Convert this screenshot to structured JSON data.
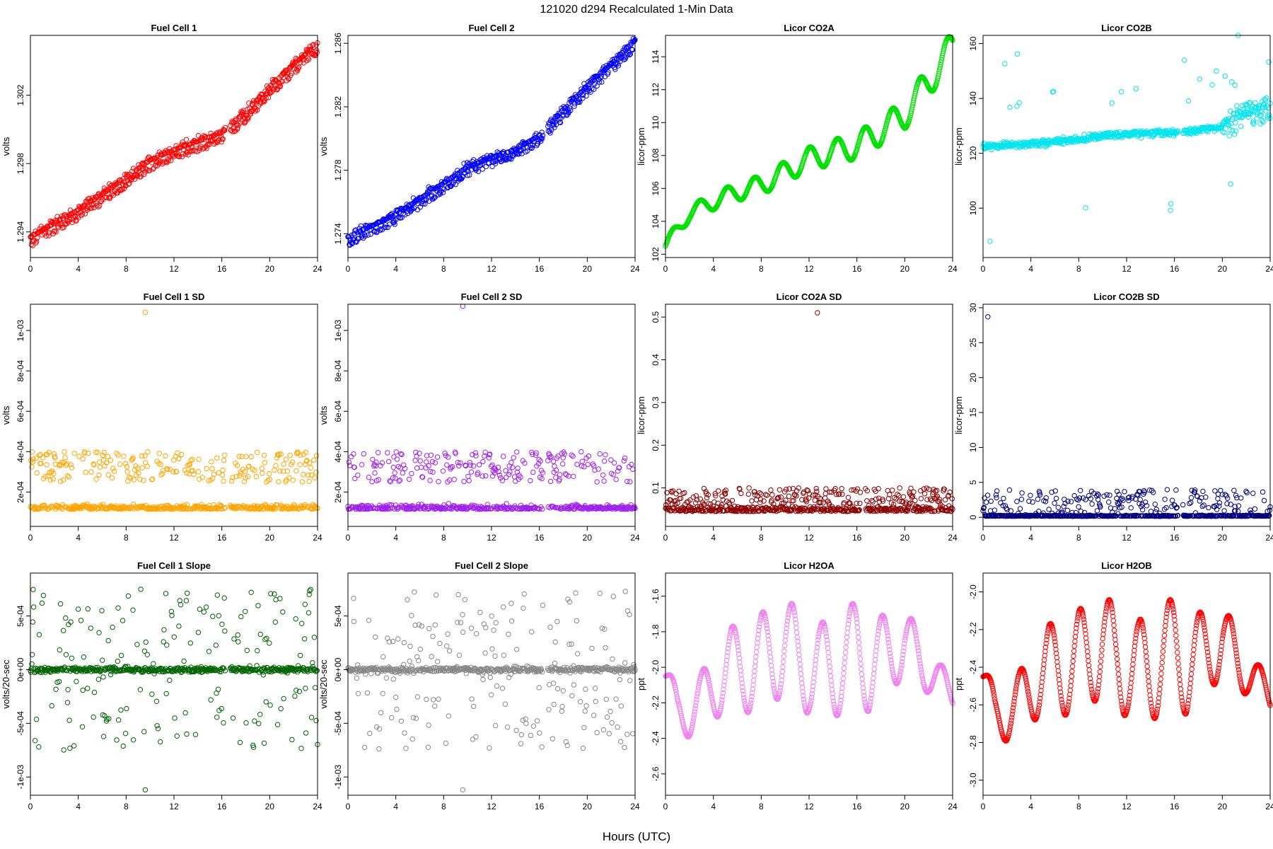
{
  "figure": {
    "title": "121020   d294   Recalculated 1-Min Data",
    "xlabel": "Hours (UTC)"
  },
  "chart_data": [
    {
      "type": "scatter",
      "title": "Fuel Cell 1",
      "ylabel": "volts",
      "color": "#ff0000",
      "xlim": [
        0,
        24
      ],
      "ylim": [
        1.2925,
        1.3055
      ],
      "xticks": [
        0,
        4,
        8,
        12,
        16,
        20,
        24
      ],
      "yticks": [
        1.294,
        1.298,
        1.302
      ],
      "ytick_labels": [
        "1.294",
        "1.298",
        "1.302"
      ],
      "shape": "trend",
      "x": [
        0,
        2,
        4,
        6,
        8,
        10,
        12,
        14,
        16,
        18,
        20,
        22,
        24
      ],
      "y": [
        1.2937,
        1.2945,
        1.2953,
        1.2962,
        1.2972,
        1.2982,
        1.2988,
        1.2993,
        1.2998,
        1.301,
        1.3025,
        1.3038,
        1.305
      ],
      "noise": 0.00035,
      "band": -0.0006
    },
    {
      "type": "scatter",
      "title": "Fuel Cell 2",
      "ylabel": "volts",
      "color": "#0000ff",
      "xlim": [
        0,
        24
      ],
      "ylim": [
        1.2725,
        1.2865
      ],
      "xticks": [
        0,
        4,
        8,
        12,
        16,
        20,
        24
      ],
      "yticks": [
        1.274,
        1.278,
        1.282,
        1.286
      ],
      "ytick_labels": [
        "1.274",
        "1.278",
        "1.282",
        "1.286"
      ],
      "shape": "trend",
      "x": [
        0,
        2,
        4,
        6,
        8,
        10,
        12,
        14,
        16,
        18,
        20,
        22,
        24
      ],
      "y": [
        1.2738,
        1.2745,
        1.2752,
        1.2762,
        1.2772,
        1.2782,
        1.2788,
        1.2793,
        1.2802,
        1.2818,
        1.2833,
        1.2847,
        1.2862
      ],
      "noise": 0.0004,
      "band": -0.0006
    },
    {
      "type": "scatter",
      "title": "Licor CO2A",
      "ylabel": "licor-ppm",
      "color": "#00e000",
      "xlim": [
        0,
        24
      ],
      "ylim": [
        101.8,
        115.3
      ],
      "xticks": [
        0,
        4,
        8,
        12,
        16,
        20,
        24
      ],
      "yticks": [
        102,
        104,
        106,
        108,
        110,
        112,
        114
      ],
      "ytick_labels": [
        "102",
        "104",
        "106",
        "108",
        "110",
        "112",
        "114"
      ],
      "shape": "osc",
      "x": [
        0,
        2,
        4,
        6,
        8,
        10,
        12,
        14,
        16,
        18,
        20,
        22,
        24
      ],
      "y": [
        102.5,
        104.5,
        105.2,
        105.8,
        106.2,
        107,
        107.8,
        108.2,
        108.6,
        109.5,
        110.5,
        112.5,
        114.6
      ],
      "amp": 1.0,
      "period": 2.3
    },
    {
      "type": "scatter",
      "title": "Licor CO2B",
      "ylabel": "licor-ppm",
      "color": "#00e5ee",
      "xlim": [
        0,
        24
      ],
      "ylim": [
        82,
        163
      ],
      "xticks": [
        0,
        4,
        8,
        12,
        16,
        20,
        24
      ],
      "yticks": [
        100,
        120,
        140,
        160
      ],
      "ytick_labels": [
        "100",
        "120",
        "140",
        "160"
      ],
      "shape": "spiky",
      "x": [
        0,
        4,
        8,
        10,
        12,
        16,
        20,
        22,
        24
      ],
      "y": [
        122.5,
        123.5,
        125,
        126.5,
        127,
        127.5,
        129.5,
        135,
        137
      ],
      "noise": 1.2
    },
    {
      "type": "scatter",
      "title": "Fuel Cell 1 SD",
      "ylabel": "volts",
      "color": "#ffa500",
      "xlim": [
        0,
        24
      ],
      "ylim": [
        3e-05,
        0.00113
      ],
      "xticks": [
        0,
        4,
        8,
        12,
        16,
        20,
        24
      ],
      "yticks": [
        0.0002,
        0.0004,
        0.0006,
        0.0008,
        0.001
      ],
      "ytick_labels": [
        "2e-04",
        "4e-04",
        "6e-04",
        "8e-04",
        "1e-03"
      ],
      "shape": "sd",
      "base": 0.000115,
      "noise": 2e-05,
      "outlier_lo": 0.00025,
      "outlier_hi": 0.0004,
      "spike_x": 9.6,
      "spike_y": 0.00109
    },
    {
      "type": "scatter",
      "title": "Fuel Cell 2 SD",
      "ylabel": "volts",
      "color": "#a020f0",
      "xlim": [
        0,
        24
      ],
      "ylim": [
        3e-05,
        0.00113
      ],
      "xticks": [
        0,
        4,
        8,
        12,
        16,
        20,
        24
      ],
      "yticks": [
        0.0002,
        0.0004,
        0.0006,
        0.0008,
        0.001
      ],
      "ytick_labels": [
        "2e-04",
        "4e-04",
        "6e-04",
        "8e-04",
        "1e-03"
      ],
      "shape": "sd",
      "base": 0.000115,
      "noise": 2e-05,
      "outlier_lo": 0.00025,
      "outlier_hi": 0.0004,
      "spike_x": 9.6,
      "spike_y": 0.00112
    },
    {
      "type": "scatter",
      "title": "Licor CO2A SD",
      "ylabel": "licor-ppm",
      "color": "#8b0000",
      "xlim": [
        0,
        24
      ],
      "ylim": [
        0.01,
        0.53
      ],
      "xticks": [
        0,
        4,
        8,
        12,
        16,
        20,
        24
      ],
      "yticks": [
        0.1,
        0.2,
        0.3,
        0.4,
        0.5
      ],
      "ytick_labels": [
        "0.1",
        "0.2",
        "0.3",
        "0.4",
        "0.5"
      ],
      "shape": "sd",
      "base": 0.045,
      "noise": 0.012,
      "outlier_lo": 0.06,
      "outlier_hi": 0.1,
      "spike_x": 12.7,
      "spike_y": 0.51
    },
    {
      "type": "scatter",
      "title": "Licor CO2B SD",
      "ylabel": "licor-ppm",
      "color": "#000080",
      "xlim": [
        0,
        24
      ],
      "ylim": [
        -1.3,
        30.5
      ],
      "xticks": [
        0,
        4,
        8,
        12,
        16,
        20,
        24
      ],
      "yticks": [
        0,
        5,
        10,
        15,
        20,
        25,
        30
      ],
      "ytick_labels": [
        "0",
        "5",
        "10",
        "15",
        "20",
        "25",
        "30"
      ],
      "shape": "sd",
      "base": 0.15,
      "noise": 0.15,
      "outlier_lo": 0.5,
      "outlier_hi": 4,
      "spike_x": 0.4,
      "spike_y": 28.7
    },
    {
      "type": "scatter",
      "title": "Fuel Cell 1 Slope",
      "ylabel": "volts/20-sec",
      "color": "#006400",
      "xlim": [
        0,
        24
      ],
      "ylim": [
        -0.00117,
        0.0009
      ],
      "xticks": [
        0,
        4,
        8,
        12,
        16,
        20,
        24
      ],
      "yticks": [
        -0.001,
        -0.0005,
        0,
        0.0005
      ],
      "ytick_labels": [
        "-1e-03",
        "-5e-04",
        "0e+00",
        "5e-04"
      ],
      "shape": "slope",
      "base": 0,
      "noise": 2.5e-05,
      "outlier_amp": 0.00075,
      "spike_x": 9.6,
      "spike_y": -0.00112
    },
    {
      "type": "scatter",
      "title": "Fuel Cell 2 Slope",
      "ylabel": "volts/20-sec",
      "color": "#888888",
      "xlim": [
        0,
        24
      ],
      "ylim": [
        -0.00117,
        0.0009
      ],
      "xticks": [
        0,
        4,
        8,
        12,
        16,
        20,
        24
      ],
      "yticks": [
        -0.001,
        -0.0005,
        0,
        0.0005
      ],
      "ytick_labels": [
        "-1e-03",
        "-5e-04",
        "0e+00",
        "5e-04"
      ],
      "shape": "slope",
      "base": 0,
      "noise": 2.5e-05,
      "outlier_amp": 0.00075,
      "spike_x": 9.6,
      "spike_y": -0.00112
    },
    {
      "type": "scatter",
      "title": "Licor H2OA",
      "ylabel": "ppt",
      "color": "#ee82ee",
      "xlim": [
        0,
        24
      ],
      "ylim": [
        -2.72,
        -1.47
      ],
      "xticks": [
        0,
        4,
        8,
        12,
        16,
        20,
        24
      ],
      "yticks": [
        -2.6,
        -2.4,
        -2.2,
        -2.0,
        -1.8,
        -1.6
      ],
      "ytick_labels": [
        "-2.6",
        "-2.4",
        "-2.2",
        "-2.0",
        "-1.8",
        "-1.6"
      ],
      "shape": "wave",
      "x": [
        0,
        1,
        2,
        3,
        4,
        5.5,
        7,
        8.5,
        10,
        11,
        12,
        13,
        14,
        15,
        16,
        17,
        18,
        19,
        20,
        21,
        22,
        23,
        24
      ],
      "y": [
        -2.05,
        -2.25,
        -2.25,
        -2.2,
        -2.1,
        -2.0,
        -2.0,
        -1.95,
        -1.85,
        -2.0,
        -1.95,
        -2.05,
        -2.0,
        -1.95,
        -1.9,
        -2.0,
        -1.95,
        -1.9,
        -1.85,
        -1.95,
        -2.0,
        -2.1,
        -2.15
      ],
      "amp": 0.3,
      "period": 2.5
    },
    {
      "type": "scatter",
      "title": "Licor H2OB",
      "ylabel": "ppt",
      "color": "#ff0000",
      "xlim": [
        0,
        24
      ],
      "ylim": [
        -3.08,
        -1.9
      ],
      "xticks": [
        0,
        4,
        8,
        12,
        16,
        20,
        24
      ],
      "yticks": [
        -3.0,
        -2.8,
        -2.6,
        -2.4,
        -2.2,
        -2.0
      ],
      "ytick_labels": [
        "-3.0",
        "-2.8",
        "-2.6",
        "-2.4",
        "-2.2",
        "-2.0"
      ],
      "shape": "wave",
      "x": [
        0,
        1,
        2,
        3,
        4,
        5.5,
        7,
        8.5,
        10,
        11,
        12,
        13,
        14,
        15,
        16,
        17,
        18,
        19,
        20,
        21,
        22,
        23,
        24
      ],
      "y": [
        -2.45,
        -2.65,
        -2.65,
        -2.6,
        -2.5,
        -2.4,
        -2.4,
        -2.35,
        -2.25,
        -2.4,
        -2.35,
        -2.45,
        -2.4,
        -2.35,
        -2.3,
        -2.4,
        -2.35,
        -2.3,
        -2.25,
        -2.35,
        -2.4,
        -2.5,
        -2.55
      ],
      "amp": 0.3,
      "period": 2.5
    }
  ]
}
